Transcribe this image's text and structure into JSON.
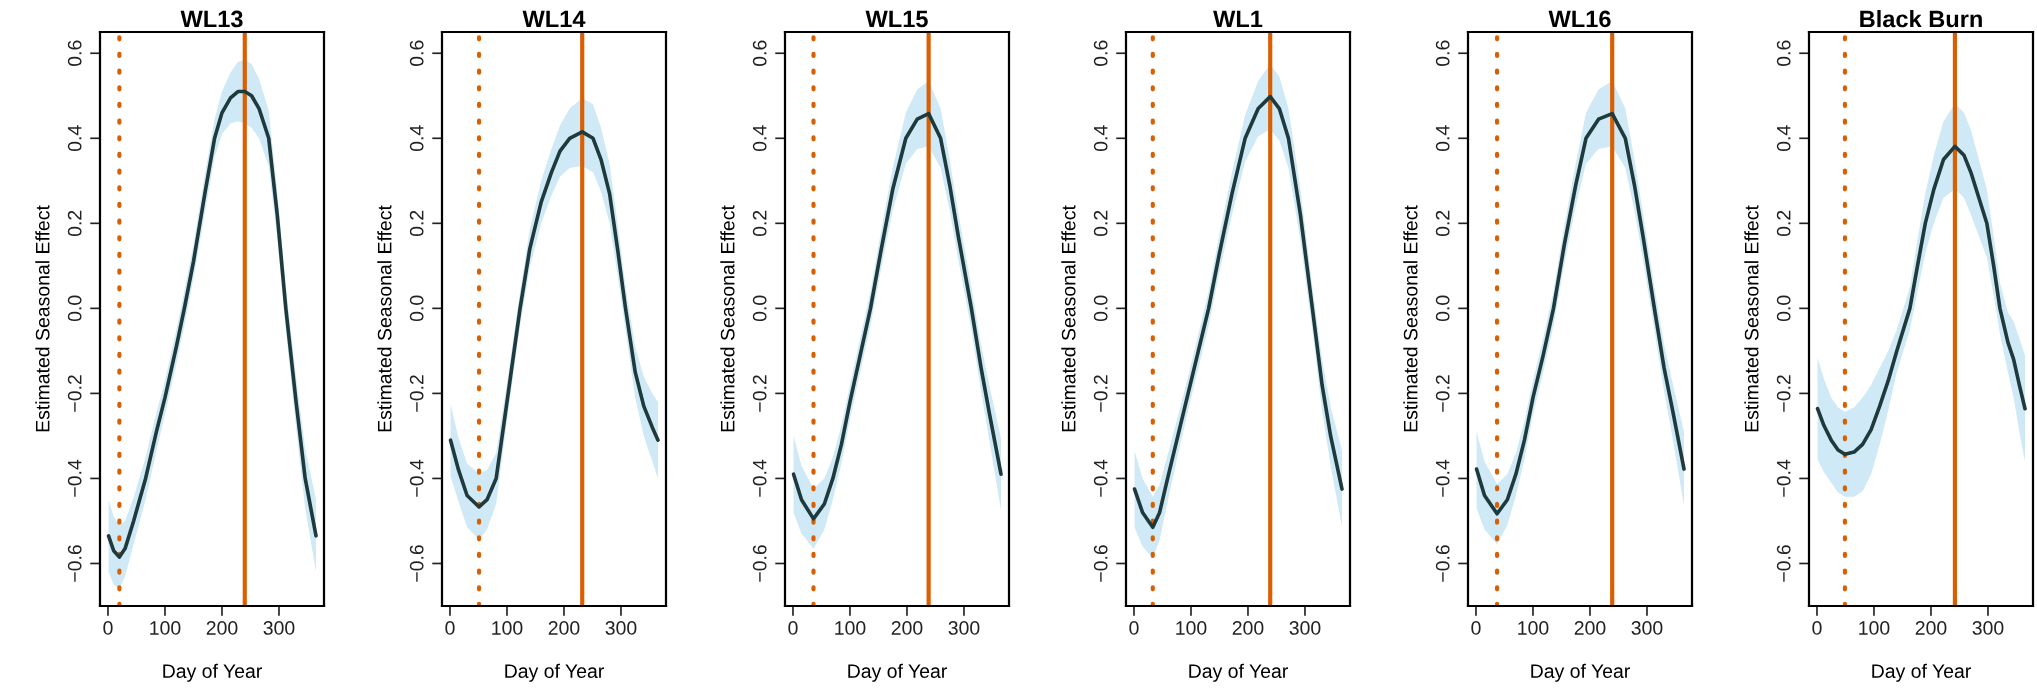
{
  "chart_data": [
    {
      "type": "line",
      "title": "WL13",
      "xlabel": "Day of Year",
      "ylabel": "Estimated Seasonal Effect",
      "xlim": [
        -14,
        379
      ],
      "ylim": [
        -0.7,
        0.65
      ],
      "xticks": [
        0,
        100,
        200,
        300
      ],
      "yticks": [
        {
          "value": -0.6,
          "label": "−0.6"
        },
        {
          "value": -0.4,
          "label": "−0.4"
        },
        {
          "value": -0.2,
          "label": "−0.2"
        },
        {
          "value": 0.0,
          "label": "0.0"
        },
        {
          "value": 0.2,
          "label": "0.2"
        },
        {
          "value": 0.4,
          "label": "0.4"
        },
        {
          "value": 0.6,
          "label": "0.6"
        }
      ],
      "grid": false,
      "series": [
        {
          "color": "#1f3a3d",
          "x": [
            1,
            10,
            20,
            30,
            45,
            66,
            85,
            100,
            120,
            134,
            150,
            170,
            187,
            200,
            215,
            228,
            240,
            252,
            265,
            282,
            297,
            312,
            330,
            346,
            365
          ],
          "values": [
            -0.535,
            -0.57,
            -0.585,
            -0.565,
            -0.5,
            -0.4,
            -0.29,
            -0.21,
            -0.09,
            0.0,
            0.11,
            0.27,
            0.4,
            0.46,
            0.495,
            0.51,
            0.51,
            0.5,
            0.47,
            0.4,
            0.22,
            0.0,
            -0.22,
            -0.4,
            -0.535
          ],
          "lower": [
            -0.62,
            -0.65,
            -0.66,
            -0.63,
            -0.555,
            -0.45,
            -0.335,
            -0.25,
            -0.13,
            -0.04,
            0.07,
            0.225,
            0.355,
            0.41,
            0.435,
            0.44,
            0.435,
            0.425,
            0.4,
            0.335,
            0.165,
            -0.05,
            -0.28,
            -0.47,
            -0.62
          ],
          "upper": [
            -0.45,
            -0.49,
            -0.51,
            -0.5,
            -0.445,
            -0.35,
            -0.245,
            -0.17,
            -0.05,
            0.04,
            0.15,
            0.315,
            0.445,
            0.51,
            0.555,
            0.58,
            0.585,
            0.575,
            0.54,
            0.465,
            0.275,
            0.05,
            -0.16,
            -0.33,
            -0.45
          ]
        }
      ],
      "ref_lines": [
        {
          "axis": "x",
          "value": 20,
          "color": "#d95f02",
          "line_style": "dotted"
        },
        {
          "axis": "x",
          "value": 240,
          "color": "#d95f02",
          "line_style": "solid"
        }
      ]
    },
    {
      "type": "line",
      "title": "WL14",
      "xlabel": "Day of Year",
      "ylabel": "Estimated Seasonal Effect",
      "xlim": [
        -14,
        379
      ],
      "ylim": [
        -0.7,
        0.65
      ],
      "xticks": [
        0,
        100,
        200,
        300
      ],
      "yticks": [
        {
          "value": -0.6,
          "label": "−0.6"
        },
        {
          "value": -0.4,
          "label": "−0.4"
        },
        {
          "value": -0.2,
          "label": "−0.2"
        },
        {
          "value": 0.0,
          "label": "0.0"
        },
        {
          "value": 0.2,
          "label": "0.2"
        },
        {
          "value": 0.4,
          "label": "0.4"
        },
        {
          "value": 0.6,
          "label": "0.6"
        }
      ],
      "grid": false,
      "series": [
        {
          "color": "#1f3a3d",
          "x": [
            1,
            15,
            30,
            51,
            65,
            81,
            100,
            123,
            140,
            160,
            178,
            193,
            210,
            232,
            251,
            265,
            280,
            295,
            308,
            325,
            340,
            355,
            365
          ],
          "values": [
            -0.31,
            -0.38,
            -0.44,
            -0.467,
            -0.45,
            -0.4,
            -0.22,
            0.0,
            0.14,
            0.25,
            0.32,
            0.37,
            0.4,
            0.415,
            0.4,
            0.35,
            0.27,
            0.13,
            0.0,
            -0.15,
            -0.23,
            -0.28,
            -0.31
          ],
          "lower": [
            -0.395,
            -0.455,
            -0.515,
            -0.545,
            -0.52,
            -0.46,
            -0.265,
            -0.04,
            0.095,
            0.2,
            0.265,
            0.31,
            0.33,
            0.335,
            0.32,
            0.275,
            0.2,
            0.07,
            -0.05,
            -0.21,
            -0.3,
            -0.36,
            -0.4
          ],
          "upper": [
            -0.225,
            -0.305,
            -0.365,
            -0.389,
            -0.38,
            -0.34,
            -0.175,
            0.04,
            0.185,
            0.3,
            0.375,
            0.43,
            0.47,
            0.495,
            0.48,
            0.425,
            0.34,
            0.19,
            0.05,
            -0.09,
            -0.16,
            -0.2,
            -0.22
          ]
        }
      ],
      "ref_lines": [
        {
          "axis": "x",
          "value": 51,
          "color": "#d95f02",
          "line_style": "dotted"
        },
        {
          "axis": "x",
          "value": 232,
          "color": "#d95f02",
          "line_style": "solid"
        }
      ]
    },
    {
      "type": "line",
      "title": "WL15",
      "xlabel": "Day of Year",
      "ylabel": "Estimated Seasonal Effect",
      "xlim": [
        -14,
        379
      ],
      "ylim": [
        -0.7,
        0.65
      ],
      "xticks": [
        0,
        100,
        200,
        300
      ],
      "yticks": [
        {
          "value": -0.6,
          "label": "−0.6"
        },
        {
          "value": -0.4,
          "label": "−0.4"
        },
        {
          "value": -0.2,
          "label": "−0.2"
        },
        {
          "value": 0.0,
          "label": "0.0"
        },
        {
          "value": 0.2,
          "label": "0.2"
        },
        {
          "value": 0.4,
          "label": "0.4"
        },
        {
          "value": 0.6,
          "label": "0.6"
        }
      ],
      "grid": false,
      "series": [
        {
          "color": "#1f3a3d",
          "x": [
            1,
            15,
            36,
            55,
            70,
            85,
            100,
            118,
            136,
            155,
            175,
            198,
            218,
            238,
            259,
            275,
            290,
            313,
            330,
            345,
            365
          ],
          "values": [
            -0.39,
            -0.45,
            -0.495,
            -0.46,
            -0.4,
            -0.32,
            -0.22,
            -0.11,
            0.0,
            0.14,
            0.28,
            0.4,
            0.445,
            0.458,
            0.4,
            0.29,
            0.17,
            0.0,
            -0.14,
            -0.25,
            -0.39
          ],
          "lower": [
            -0.48,
            -0.53,
            -0.565,
            -0.52,
            -0.45,
            -0.365,
            -0.26,
            -0.15,
            -0.04,
            0.095,
            0.23,
            0.34,
            0.375,
            0.381,
            0.33,
            0.23,
            0.115,
            -0.05,
            -0.195,
            -0.315,
            -0.475
          ],
          "upper": [
            -0.3,
            -0.37,
            -0.425,
            -0.4,
            -0.35,
            -0.275,
            -0.18,
            -0.07,
            0.04,
            0.185,
            0.33,
            0.46,
            0.515,
            0.535,
            0.47,
            0.35,
            0.225,
            0.05,
            -0.085,
            -0.185,
            -0.305
          ]
        }
      ],
      "ref_lines": [
        {
          "axis": "x",
          "value": 36,
          "color": "#d95f02",
          "line_style": "dotted"
        },
        {
          "axis": "x",
          "value": 238,
          "color": "#d95f02",
          "line_style": "solid"
        }
      ]
    },
    {
      "type": "line",
      "title": "WL1",
      "xlabel": "Day of Year",
      "ylabel": "Estimated Seasonal Effect",
      "xlim": [
        -14,
        379
      ],
      "ylim": [
        -0.7,
        0.65
      ],
      "xticks": [
        0,
        100,
        200,
        300
      ],
      "yticks": [
        {
          "value": -0.6,
          "label": "−0.6"
        },
        {
          "value": -0.4,
          "label": "−0.4"
        },
        {
          "value": -0.2,
          "label": "−0.2"
        },
        {
          "value": 0.0,
          "label": "0.0"
        },
        {
          "value": 0.2,
          "label": "0.2"
        },
        {
          "value": 0.4,
          "label": "0.4"
        },
        {
          "value": 0.6,
          "label": "0.6"
        }
      ],
      "grid": false,
      "series": [
        {
          "color": "#1f3a3d",
          "x": [
            1,
            15,
            33,
            45,
            59,
            77,
            95,
            113,
            131,
            150,
            172,
            195,
            218,
            239,
            255,
            271,
            292,
            313,
            330,
            345,
            365
          ],
          "values": [
            -0.425,
            -0.48,
            -0.515,
            -0.48,
            -0.4,
            -0.3,
            -0.2,
            -0.1,
            0.0,
            0.13,
            0.27,
            0.4,
            0.47,
            0.498,
            0.47,
            0.4,
            0.22,
            0.0,
            -0.18,
            -0.3,
            -0.425
          ],
          "lower": [
            -0.515,
            -0.56,
            -0.587,
            -0.545,
            -0.455,
            -0.345,
            -0.24,
            -0.14,
            -0.04,
            0.085,
            0.22,
            0.345,
            0.405,
            0.421,
            0.395,
            0.33,
            0.16,
            -0.05,
            -0.24,
            -0.37,
            -0.515
          ],
          "upper": [
            -0.335,
            -0.4,
            -0.443,
            -0.415,
            -0.345,
            -0.255,
            -0.16,
            -0.06,
            0.04,
            0.175,
            0.32,
            0.455,
            0.535,
            0.575,
            0.545,
            0.47,
            0.28,
            0.05,
            -0.12,
            -0.23,
            -0.335
          ]
        }
      ],
      "ref_lines": [
        {
          "axis": "x",
          "value": 33,
          "color": "#d95f02",
          "line_style": "dotted"
        },
        {
          "axis": "x",
          "value": 239,
          "color": "#d95f02",
          "line_style": "solid"
        }
      ]
    },
    {
      "type": "line",
      "title": "WL16",
      "xlabel": "Day of Year",
      "ylabel": "Estimated Seasonal Effect",
      "xlim": [
        -14,
        379
      ],
      "ylim": [
        -0.7,
        0.65
      ],
      "xticks": [
        0,
        100,
        200,
        300
      ],
      "yticks": [
        {
          "value": -0.6,
          "label": "−0.6"
        },
        {
          "value": -0.4,
          "label": "−0.4"
        },
        {
          "value": -0.2,
          "label": "−0.2"
        },
        {
          "value": 0.0,
          "label": "0.0"
        },
        {
          "value": 0.2,
          "label": "0.2"
        },
        {
          "value": 0.4,
          "label": "0.4"
        },
        {
          "value": 0.6,
          "label": "0.6"
        }
      ],
      "grid": false,
      "series": [
        {
          "color": "#1f3a3d",
          "x": [
            1,
            15,
            37,
            55,
            70,
            85,
            100,
            118,
            136,
            155,
            175,
            193,
            215,
            239,
            262,
            278,
            293,
            313,
            330,
            345,
            365
          ],
          "values": [
            -0.378,
            -0.44,
            -0.483,
            -0.45,
            -0.39,
            -0.31,
            -0.21,
            -0.11,
            0.0,
            0.15,
            0.29,
            0.4,
            0.445,
            0.458,
            0.4,
            0.29,
            0.17,
            0.0,
            -0.14,
            -0.24,
            -0.378
          ],
          "lower": [
            -0.47,
            -0.52,
            -0.555,
            -0.51,
            -0.44,
            -0.355,
            -0.25,
            -0.15,
            -0.04,
            0.105,
            0.24,
            0.34,
            0.375,
            0.381,
            0.33,
            0.23,
            0.115,
            -0.05,
            -0.195,
            -0.305,
            -0.465
          ],
          "upper": [
            -0.29,
            -0.36,
            -0.413,
            -0.39,
            -0.34,
            -0.265,
            -0.17,
            -0.07,
            0.04,
            0.195,
            0.34,
            0.46,
            0.515,
            0.535,
            0.47,
            0.35,
            0.225,
            0.05,
            -0.085,
            -0.175,
            -0.29
          ]
        }
      ],
      "ref_lines": [
        {
          "axis": "x",
          "value": 37,
          "color": "#d95f02",
          "line_style": "dotted"
        },
        {
          "axis": "x",
          "value": 239,
          "color": "#d95f02",
          "line_style": "solid"
        }
      ]
    },
    {
      "type": "line",
      "title": "Black Burn",
      "xlabel": "Day of Year",
      "ylabel": "Estimated Seasonal Effect",
      "xlim": [
        -14,
        379
      ],
      "ylim": [
        -0.7,
        0.65
      ],
      "xticks": [
        0,
        100,
        200,
        300
      ],
      "yticks": [
        {
          "value": -0.6,
          "label": "−0.6"
        },
        {
          "value": -0.4,
          "label": "−0.4"
        },
        {
          "value": -0.2,
          "label": "−0.2"
        },
        {
          "value": 0.0,
          "label": "0.0"
        },
        {
          "value": 0.2,
          "label": "0.2"
        },
        {
          "value": 0.4,
          "label": "0.4"
        },
        {
          "value": 0.6,
          "label": "0.6"
        }
      ],
      "grid": false,
      "series": [
        {
          "color": "#1f3a3d",
          "x": [
            1,
            12,
            25,
            37,
            49,
            65,
            80,
            95,
            110,
            125,
            140,
            163,
            175,
            190,
            205,
            222,
            242,
            258,
            270,
            284,
            298,
            310,
            321,
            335,
            345,
            355,
            365
          ],
          "values": [
            -0.236,
            -0.275,
            -0.31,
            -0.333,
            -0.343,
            -0.338,
            -0.32,
            -0.285,
            -0.23,
            -0.17,
            -0.1,
            0.0,
            0.09,
            0.2,
            0.28,
            0.35,
            0.381,
            0.36,
            0.32,
            0.26,
            0.2,
            0.1,
            0.0,
            -0.08,
            -0.12,
            -0.18,
            -0.236
          ],
          "lower": [
            -0.356,
            -0.385,
            -0.41,
            -0.433,
            -0.443,
            -0.443,
            -0.43,
            -0.39,
            -0.32,
            -0.24,
            -0.15,
            -0.05,
            0.03,
            0.13,
            0.2,
            0.26,
            0.281,
            0.26,
            0.22,
            0.17,
            0.12,
            0.03,
            -0.06,
            -0.15,
            -0.21,
            -0.29,
            -0.361
          ],
          "upper": [
            -0.116,
            -0.165,
            -0.21,
            -0.233,
            -0.243,
            -0.233,
            -0.21,
            -0.18,
            -0.14,
            -0.1,
            -0.05,
            0.05,
            0.15,
            0.27,
            0.36,
            0.44,
            0.481,
            0.46,
            0.42,
            0.35,
            0.28,
            0.17,
            0.06,
            -0.01,
            -0.03,
            -0.07,
            -0.111
          ]
        }
      ],
      "ref_lines": [
        {
          "axis": "x",
          "value": 49,
          "color": "#d95f02",
          "line_style": "dotted"
        },
        {
          "axis": "x",
          "value": 242,
          "color": "#d95f02",
          "line_style": "solid"
        }
      ]
    }
  ]
}
